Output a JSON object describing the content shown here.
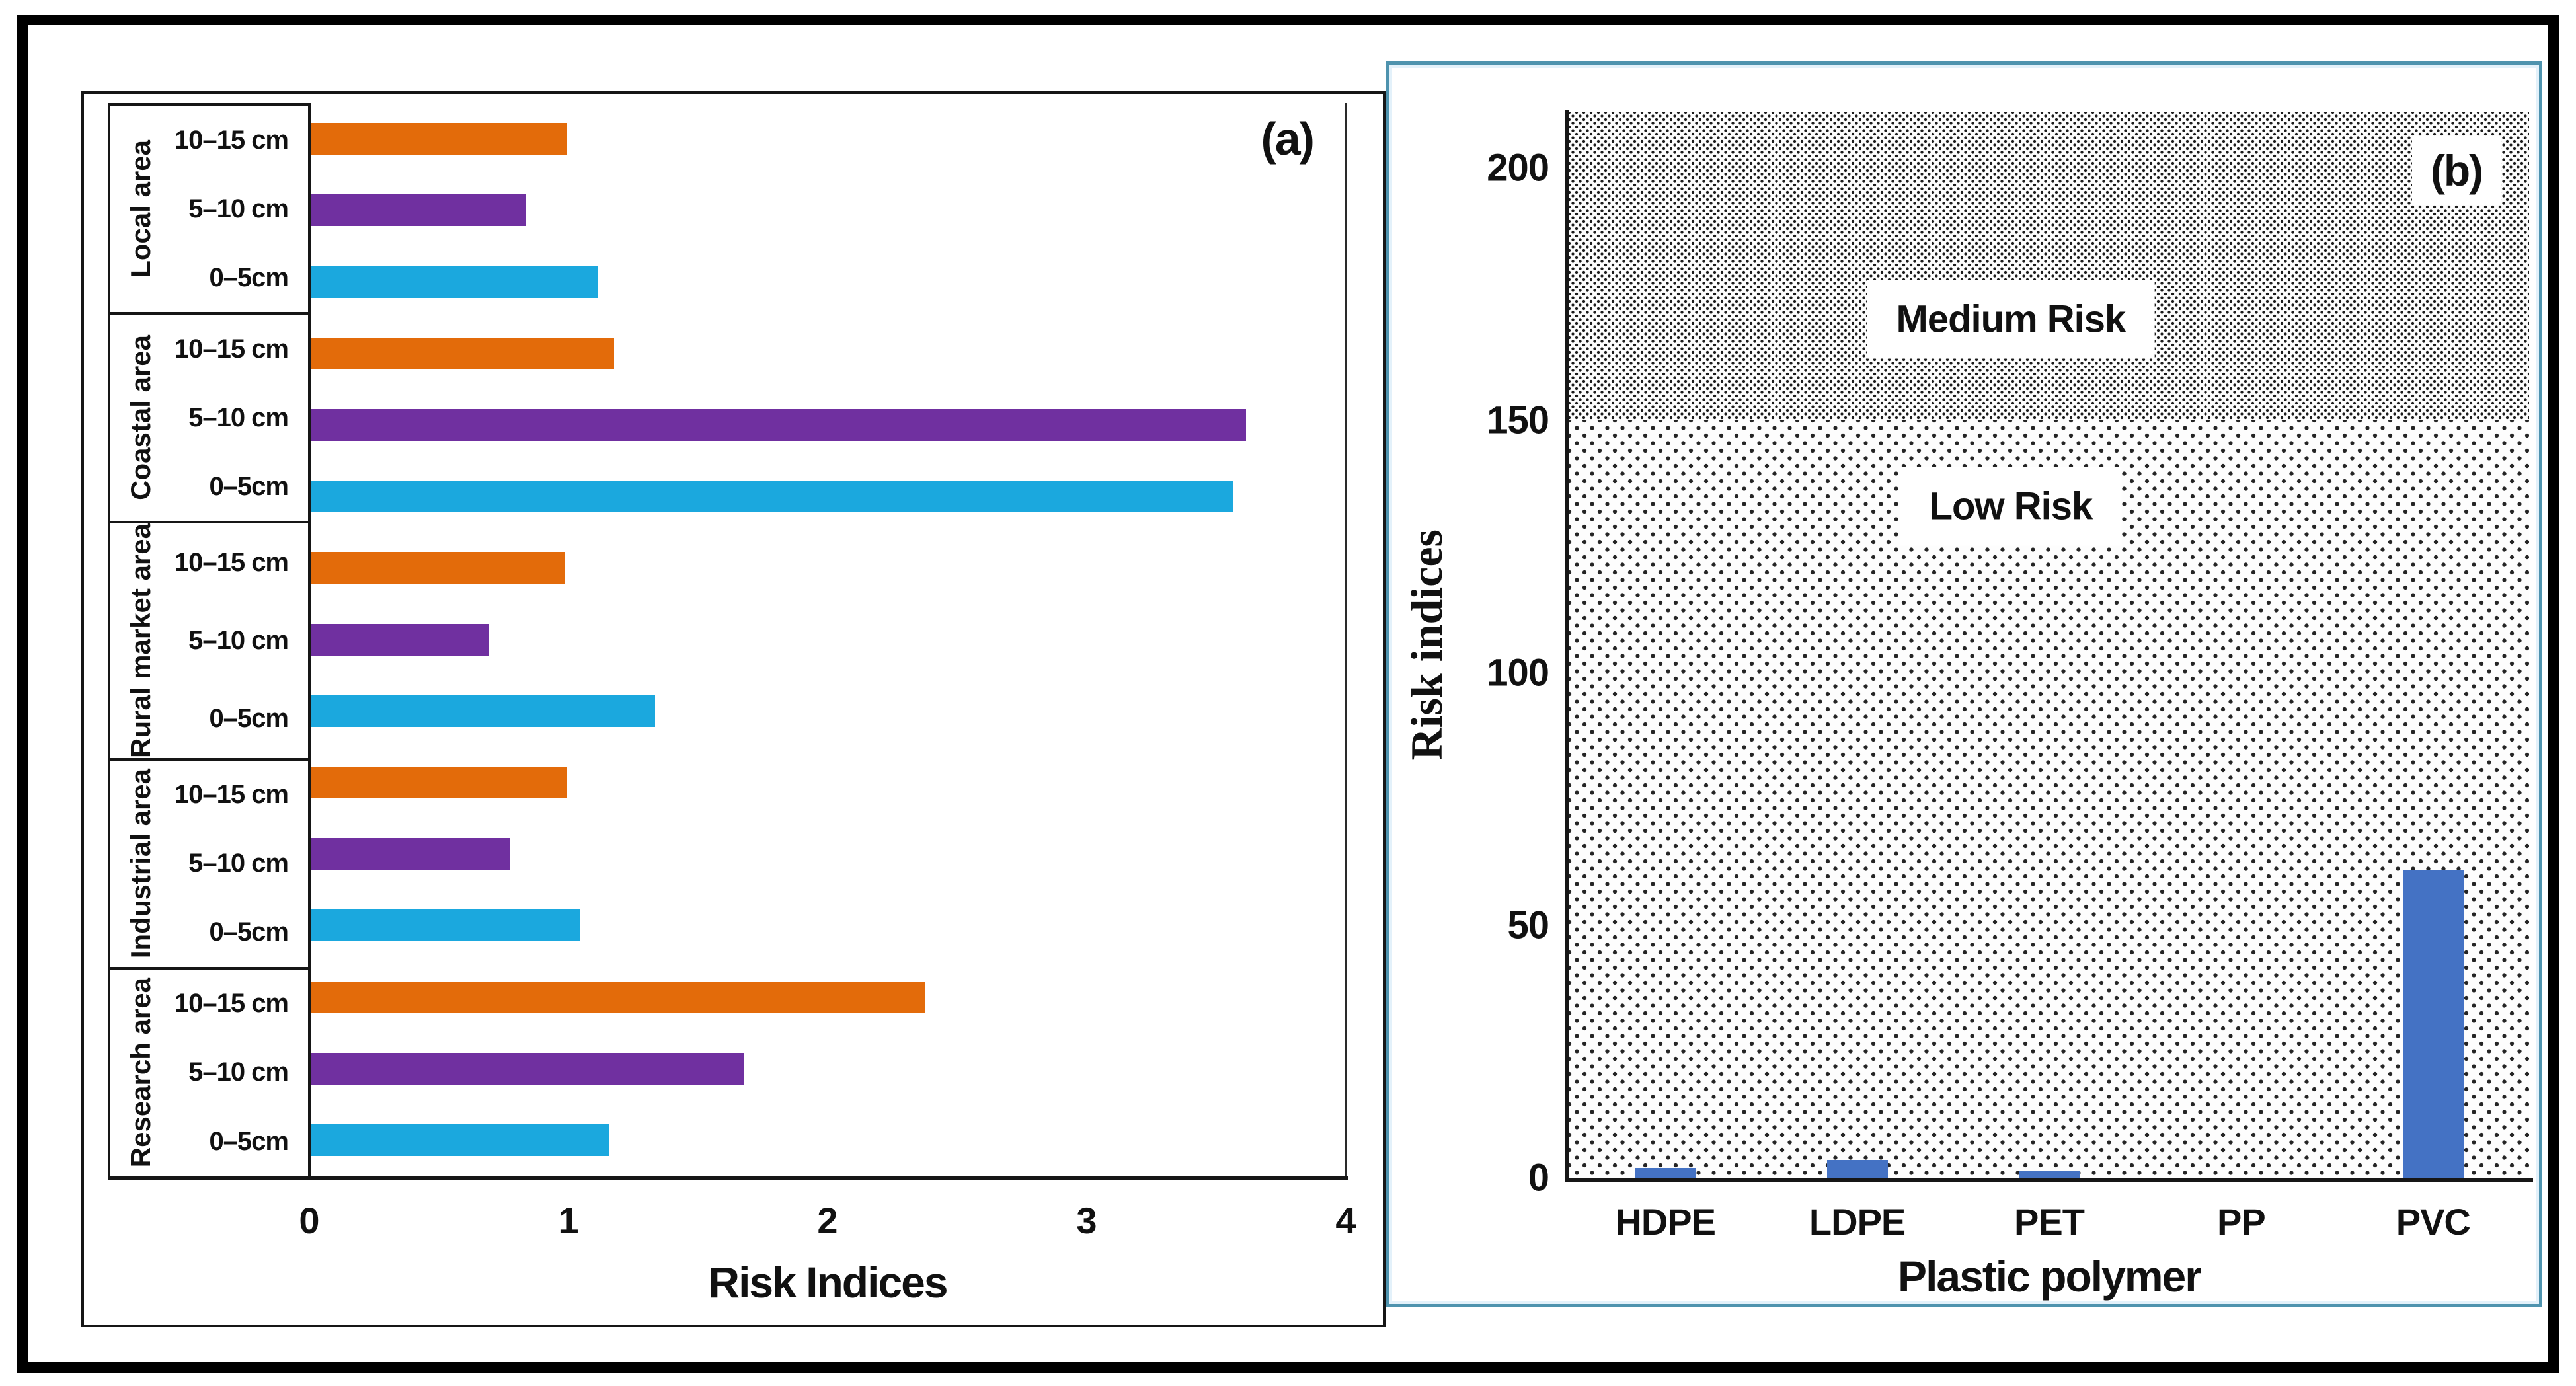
{
  "colors": {
    "depth_10_15cm": "#e36b0a",
    "depth_5_10cm": "#7030a0",
    "depth_0_5cm": "#1ba8de",
    "polymer_bar": "#4472c4",
    "panel_b_border": "#4e93ae",
    "axis_line": "#161616",
    "figure_border": "#000000"
  },
  "chart_data": [
    {
      "id": "a",
      "tag": "(a)",
      "type": "bar",
      "orientation": "horizontal",
      "xlabel": "Risk Indices",
      "xlim": [
        0,
        4
      ],
      "x_ticks": [
        "0",
        "1",
        "2",
        "3",
        "4"
      ],
      "grid": false,
      "legend": false,
      "depth_order_top_to_bottom": [
        "10–15 cm",
        "5–10 cm",
        "0–5cm"
      ],
      "groups": [
        {
          "label": "Local area",
          "bars": [
            {
              "depth": "10–15 cm",
              "value": 1.0,
              "color": "depth_10_15cm"
            },
            {
              "depth": "5–10 cm",
              "value": 0.84,
              "color": "depth_5_10cm"
            },
            {
              "depth": "0–5cm",
              "value": 1.12,
              "color": "depth_0_5cm"
            }
          ]
        },
        {
          "label": "Coastal area",
          "bars": [
            {
              "depth": "10–15 cm",
              "value": 1.18,
              "color": "depth_10_15cm"
            },
            {
              "depth": "5–10 cm",
              "value": 3.62,
              "color": "depth_5_10cm"
            },
            {
              "depth": "0–5cm",
              "value": 3.57,
              "color": "depth_0_5cm"
            }
          ]
        },
        {
          "label": "Rural market area",
          "bars": [
            {
              "depth": "10–15 cm",
              "value": 0.99,
              "color": "depth_10_15cm"
            },
            {
              "depth": "5–10 cm",
              "value": 0.7,
              "color": "depth_5_10cm"
            },
            {
              "depth": "0–5cm",
              "value": 1.34,
              "color": "depth_0_5cm"
            }
          ]
        },
        {
          "label": "Industrial area",
          "bars": [
            {
              "depth": "10–15 cm",
              "value": 1.0,
              "color": "depth_10_15cm"
            },
            {
              "depth": "5–10 cm",
              "value": 0.78,
              "color": "depth_5_10cm"
            },
            {
              "depth": "0–5cm",
              "value": 1.05,
              "color": "depth_0_5cm"
            }
          ]
        },
        {
          "label": "Research area",
          "bars": [
            {
              "depth": "10–15 cm",
              "value": 2.38,
              "color": "depth_10_15cm"
            },
            {
              "depth": "5–10 cm",
              "value": 1.68,
              "color": "depth_5_10cm"
            },
            {
              "depth": "0–5cm",
              "value": 1.16,
              "color": "depth_0_5cm"
            }
          ]
        }
      ]
    },
    {
      "id": "b",
      "tag": "(b)",
      "type": "bar",
      "orientation": "vertical",
      "categories": [
        "HDPE",
        "LDPE",
        "PET",
        "PP",
        "PVC"
      ],
      "values": [
        2,
        3.5,
        1.5,
        0,
        61
      ],
      "xlabel": "Plastic polymer",
      "ylabel": "Risk indices",
      "ylim": [
        0,
        200
      ],
      "plot_max": 211,
      "y_ticks": [
        "0",
        "50",
        "100",
        "150",
        "200"
      ],
      "grid": false,
      "legend": false,
      "zones": [
        {
          "label": "Medium Risk",
          "from": 150,
          "to": 211,
          "pattern": "dense-dots"
        },
        {
          "label": "Low Risk",
          "from": 0,
          "to": 150,
          "pattern": "sparse-dots"
        }
      ]
    }
  ]
}
